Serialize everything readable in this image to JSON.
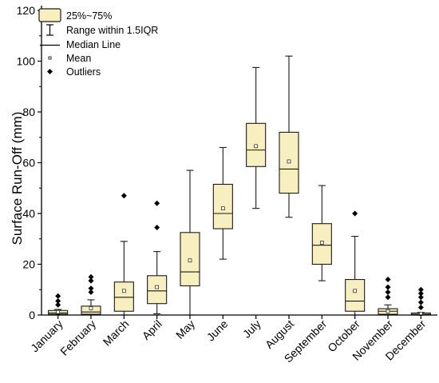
{
  "colors": {
    "box_fill": "#f7efc0",
    "box_stroke": "#1a1a1a",
    "axis": "#000000",
    "mean_marker": "#ffffff"
  },
  "chart_data": {
    "type": "box",
    "title": "",
    "xlabel": "",
    "ylabel": "Surface Run-Off (mm)",
    "ylim": [
      0,
      120
    ],
    "yticks": [
      0,
      20,
      40,
      60,
      80,
      100,
      120
    ],
    "grid": false,
    "legend_position": "top-left",
    "legend": [
      "25%~75%",
      "Range within 1.5IQR",
      "Median Line",
      "Mean",
      "Outliers"
    ],
    "categories": [
      "January",
      "February",
      "March",
      "April",
      "May",
      "June",
      "July",
      "August",
      "September",
      "October",
      "November",
      "December"
    ],
    "boxes": [
      {
        "q1": 0.3,
        "median": 0.8,
        "q3": 1.8,
        "whisker_low": 0,
        "whisker_high": 2.2,
        "mean": 1.2,
        "outliers": [
          4,
          5.5,
          7.5
        ]
      },
      {
        "q1": 0.3,
        "median": 1.2,
        "q3": 3.5,
        "whisker_low": 0,
        "whisker_high": 6,
        "mean": 2.7,
        "outliers": [
          9,
          10.5,
          13.5,
          15
        ]
      },
      {
        "q1": 1.5,
        "median": 7,
        "q3": 13,
        "whisker_low": 0,
        "whisker_high": 29,
        "mean": 9.5,
        "outliers": [
          47
        ]
      },
      {
        "q1": 4.5,
        "median": 9.5,
        "q3": 15.5,
        "whisker_low": 0.5,
        "whisker_high": 25,
        "mean": 11,
        "outliers": [
          34.5,
          44
        ]
      },
      {
        "q1": 11.5,
        "median": 17,
        "q3": 32.5,
        "whisker_low": 0,
        "whisker_high": 57,
        "mean": 21.5,
        "outliers": []
      },
      {
        "q1": 34,
        "median": 40,
        "q3": 51.5,
        "whisker_low": 22,
        "whisker_high": 66,
        "mean": 42,
        "outliers": []
      },
      {
        "q1": 58.5,
        "median": 65,
        "q3": 75.5,
        "whisker_low": 42,
        "whisker_high": 97.5,
        "mean": 66.5,
        "outliers": []
      },
      {
        "q1": 48,
        "median": 57.5,
        "q3": 72,
        "whisker_low": 38.5,
        "whisker_high": 102,
        "mean": 60.5,
        "outliers": []
      },
      {
        "q1": 20,
        "median": 27.5,
        "q3": 36,
        "whisker_low": 13.5,
        "whisker_high": 51,
        "mean": 28.5,
        "outliers": []
      },
      {
        "q1": 1.5,
        "median": 5.5,
        "q3": 14,
        "whisker_low": 0,
        "whisker_high": 31,
        "mean": 9.5,
        "outliers": [
          40
        ]
      },
      {
        "q1": 0.3,
        "median": 1.5,
        "q3": 2.5,
        "whisker_low": 0,
        "whisker_high": 4,
        "mean": 1.5,
        "outliers": [
          7,
          9,
          11,
          14
        ]
      },
      {
        "q1": 0,
        "median": 0.3,
        "q3": 0.8,
        "whisker_low": 0,
        "whisker_high": 1,
        "mean": 0.5,
        "outliers": [
          3,
          5,
          7,
          8.5,
          10
        ]
      }
    ]
  }
}
